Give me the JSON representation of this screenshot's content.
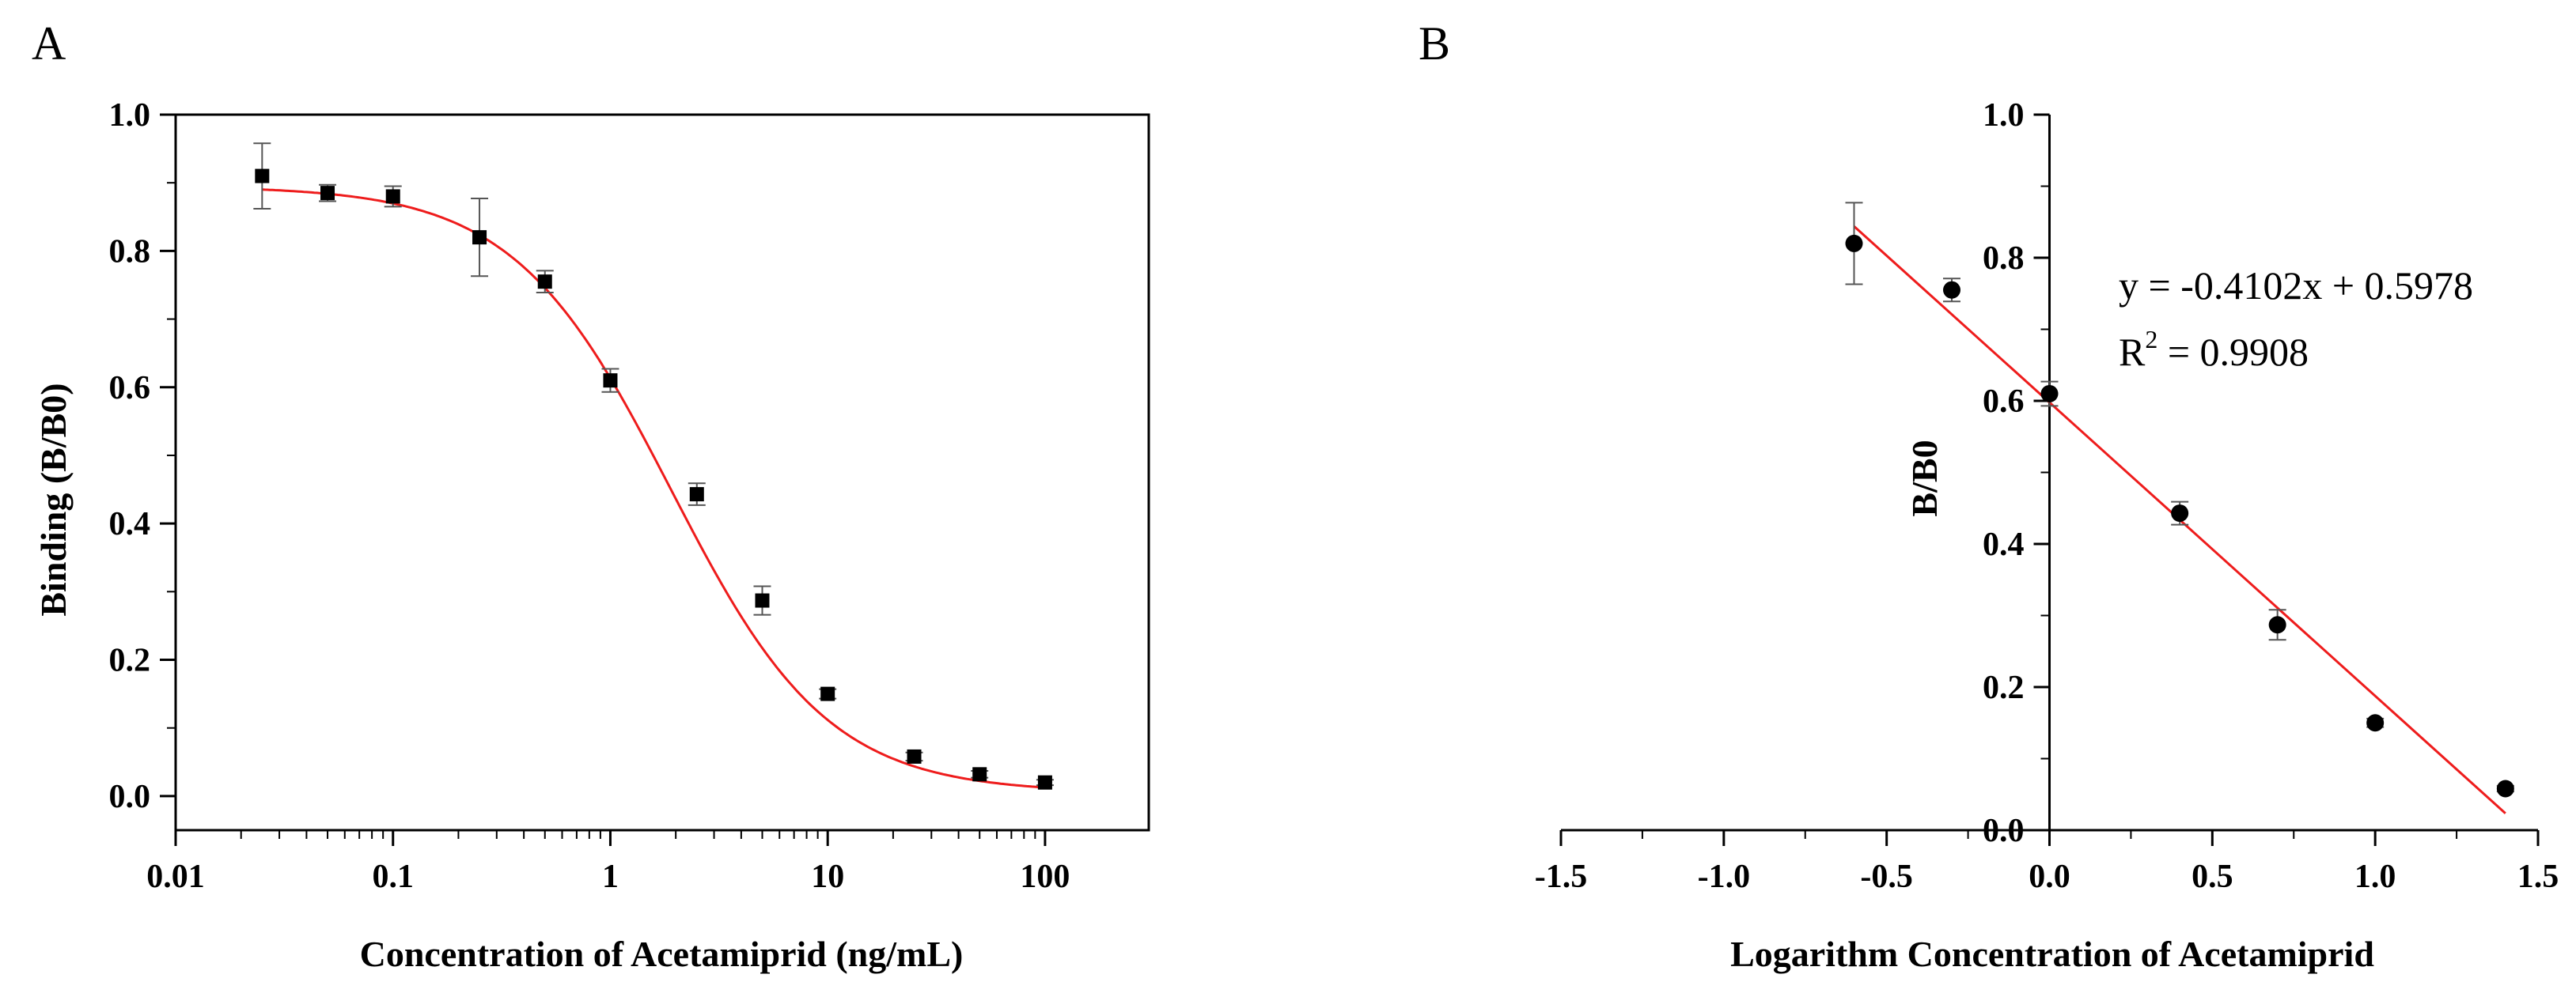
{
  "chart_data": [
    {
      "panel_label": "A",
      "type": "scatter",
      "xscale": "log",
      "xlabel": "Concentration of Acetamiprid (ng/mL)",
      "ylabel": "Binding (B/B0)",
      "xlim": [
        0.01,
        300
      ],
      "ylim": [
        -0.05,
        1.0
      ],
      "xticks": [
        0.01,
        0.1,
        1,
        10,
        100
      ],
      "xtick_labels": [
        "0.01",
        "0.1",
        "1",
        "10",
        "100"
      ],
      "yticks": [
        0.0,
        0.2,
        0.4,
        0.6,
        0.8,
        1.0
      ],
      "ytick_labels": [
        "0.0",
        "0.2",
        "0.4",
        "0.6",
        "0.8",
        "1.0"
      ],
      "marker": "square",
      "x": [
        0.025,
        0.05,
        0.1,
        0.25,
        0.5,
        1,
        2.5,
        5,
        10,
        25,
        50,
        100
      ],
      "y": [
        0.91,
        0.885,
        0.88,
        0.82,
        0.755,
        0.61,
        0.443,
        0.287,
        0.15,
        0.058,
        0.032,
        0.02
      ],
      "error": [
        0.048,
        0.012,
        0.015,
        0.057,
        0.016,
        0.017,
        0.016,
        0.021,
        0.007,
        0.006,
        0.005,
        0.004
      ],
      "fit": {
        "model": "four-parameter logistic",
        "top": 0.895,
        "bottom": 0.005,
        "ic50": 1.9,
        "hill": 1.2,
        "color": "#ee1c1c"
      }
    },
    {
      "panel_label": "B",
      "type": "scatter",
      "xlabel": "Logarithm Concentration of Acetamiprid",
      "ylabel": "B/B0",
      "xlim": [
        -1.5,
        1.5
      ],
      "ylim": [
        0.0,
        1.0
      ],
      "xticks": [
        -1.5,
        -1.0,
        -0.5,
        0.0,
        0.5,
        1.0,
        1.5
      ],
      "xtick_labels": [
        "-1.5",
        "-1.0",
        "-0.5",
        "0.0",
        "0.5",
        "1.0",
        "1.5"
      ],
      "yticks": [
        0.0,
        0.2,
        0.4,
        0.6,
        0.8,
        1.0
      ],
      "ytick_labels": [
        "0.0",
        "0.2",
        "0.4",
        "0.6",
        "0.8",
        "1.0"
      ],
      "marker": "circle",
      "x": [
        -0.6,
        -0.3,
        0.0,
        0.4,
        0.7,
        1.0,
        1.4
      ],
      "y": [
        0.82,
        0.755,
        0.61,
        0.443,
        0.287,
        0.15,
        0.058
      ],
      "error": [
        0.057,
        0.016,
        0.017,
        0.016,
        0.021,
        0.006,
        0.004
      ],
      "fit": {
        "model": "linear",
        "slope": -0.4102,
        "intercept": 0.5978,
        "x_range": [
          -0.6,
          1.4
        ],
        "color": "#ee1c1c"
      },
      "annotation": {
        "equation": "y = -0.4102x + 0.5978",
        "r2_prefix": "R",
        "r2_exponent": "2",
        "r2_value": " = 0.9908"
      }
    }
  ]
}
